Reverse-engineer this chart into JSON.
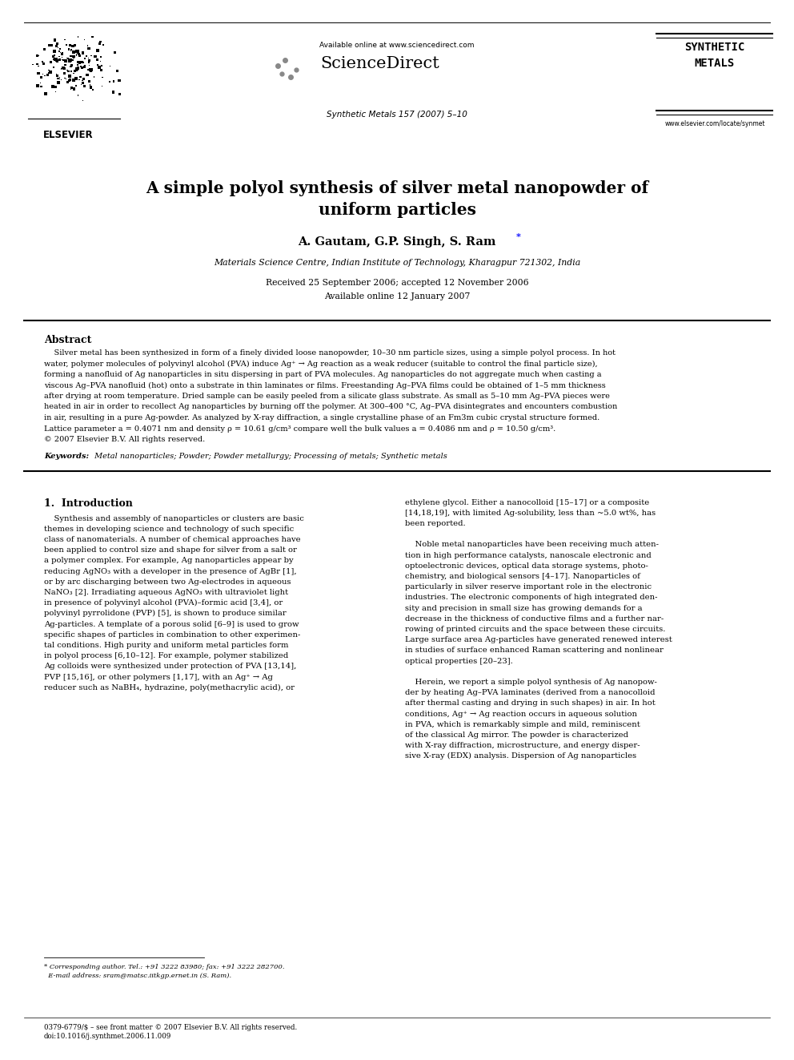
{
  "bg_color": "#ffffff",
  "page_width": 9.92,
  "page_height": 13.23,
  "header": {
    "elsevier_text": "ELSEVIER",
    "available_online": "Available online at www.sciencedirect.com",
    "sciencedirect": "ScienceDirect",
    "journal_info": "Synthetic Metals 157 (2007) 5–10",
    "journal_name_1": "SYNTHETIC",
    "journal_name_2": "METALS",
    "website": "www.elsevier.com/locate/synmet"
  },
  "title_line1": "A simple polyol synthesis of silver metal nanopowder of",
  "title_line2": "uniform particles",
  "authors_main": "A. Gautam, G.P. Singh, S. Ram",
  "authors_star": "*",
  "affiliation": "Materials Science Centre, Indian Institute of Technology, Kharagpur 721302, India",
  "received": "Received 25 September 2006; accepted 12 November 2006",
  "available": "Available online 12 January 2007",
  "abstract_title": "Abstract",
  "keywords_label": "Keywords: ",
  "keywords_text": " Metal nanoparticles; Powder; Powder metallurgy; Processing of metals; Synthetic metals",
  "section1_title": "1.  Introduction",
  "footnote": "* Corresponding author. Tel.: +91 3222 83980; fax: +91 3222 282700.\n  E-mail address: sram@matsc.iitkgp.ernet.in (S. Ram).",
  "footer": "0379-6779/$ – see front matter © 2007 Elsevier B.V. All rights reserved.\ndoi:10.1016/j.synthmet.2006.11.009"
}
